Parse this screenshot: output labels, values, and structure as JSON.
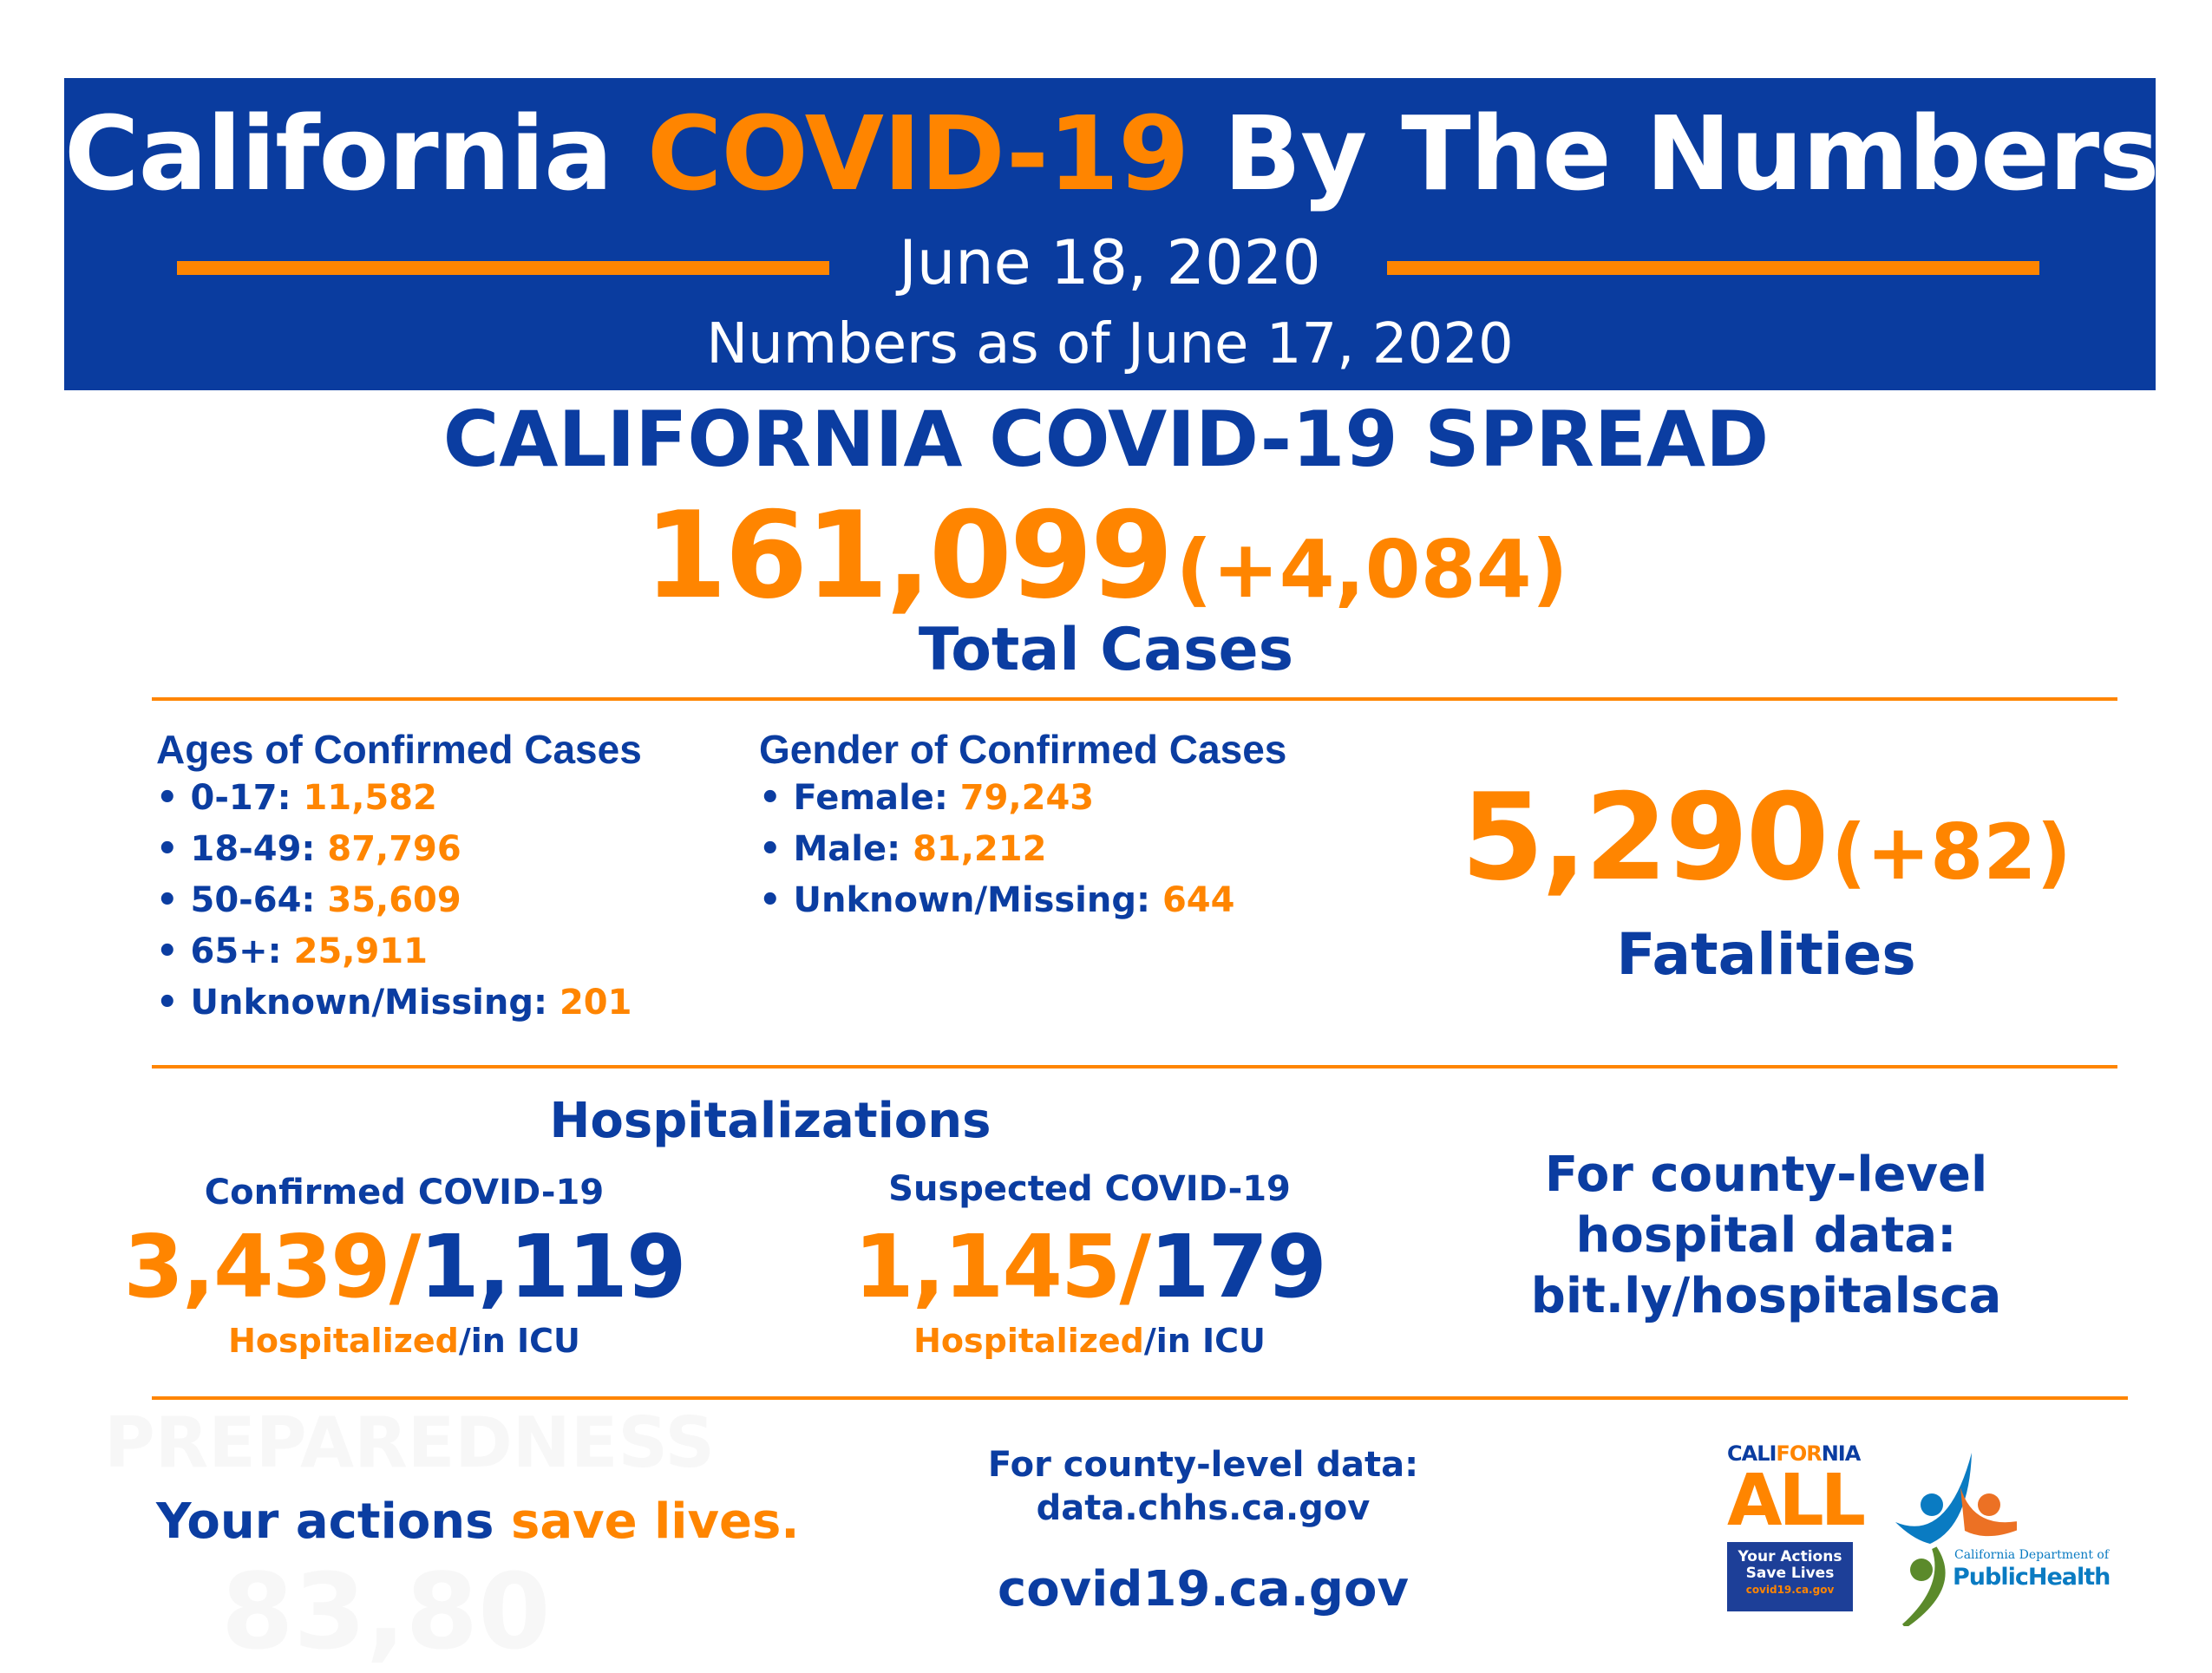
{
  "colors": {
    "blue": "#0b3da1",
    "orange": "#ff8500",
    "banner": "#0a3c9f"
  },
  "header": {
    "title_part1": "California",
    "title_highlight": "COVID-19",
    "title_part2": "By The Numbers",
    "date": "June 18, 2020",
    "as_of": "Numbers as of June 17, 2020"
  },
  "spread": {
    "heading": "CALIFORNIA COVID-19 SPREAD",
    "total": "161,099",
    "change": "(+4,084)",
    "label": "Total Cases"
  },
  "ages": {
    "heading": "Ages of Confirmed Cases",
    "items": [
      {
        "label": "• 0-17:",
        "value": "11,582"
      },
      {
        "label": "• 18-49:",
        "value": "87,796"
      },
      {
        "label": "• 50-64:",
        "value": "35,609"
      },
      {
        "label": "• 65+:",
        "value": "25,911"
      },
      {
        "label": "• Unknown/Missing:",
        "value": "201"
      }
    ]
  },
  "gender": {
    "heading": "Gender of Confirmed Cases",
    "items": [
      {
        "label": "• Female:",
        "value": "79,243"
      },
      {
        "label": "• Male:",
        "value": "81,212"
      },
      {
        "label": "• Unknown/Missing:",
        "value": "644"
      }
    ]
  },
  "fatalities": {
    "total": "5,290",
    "change": "(+82)",
    "label": "Fatalities"
  },
  "hospitalizations": {
    "heading": "Hospitalizations",
    "confirmed": {
      "label": "Confirmed COVID-19",
      "hospitalized": "3,439",
      "icu": "1,119",
      "sub_hosp": "Hospitalized",
      "sub_icu": "/in ICU"
    },
    "suspected": {
      "label": "Suspected COVID-19",
      "hospitalized": "1,145",
      "icu": "179",
      "sub_hosp": "Hospitalized",
      "sub_icu": "/in ICU"
    },
    "county_link": [
      "For county-level",
      "hospital data:",
      "bit.ly/hospitalsca"
    ]
  },
  "footer": {
    "slogan_blue": "Your actions",
    "slogan_orange": "save lives.",
    "county_data": [
      "For county-level data:",
      "data.chhs.ca.gov"
    ],
    "site": "covid19.ca.gov",
    "watermark": [
      "PREPAREDNESS",
      "83,80"
    ]
  },
  "logos": {
    "california_all": {
      "top_a": "CALI",
      "top_b": "FOR",
      "top_c": "NIA",
      "big": "ALL",
      "box": [
        "Your Actions",
        "Save Lives"
      ],
      "url": "covid19.ca.gov"
    },
    "cdph": {
      "line1": "California Department of",
      "line2": "PublicHealth"
    }
  }
}
